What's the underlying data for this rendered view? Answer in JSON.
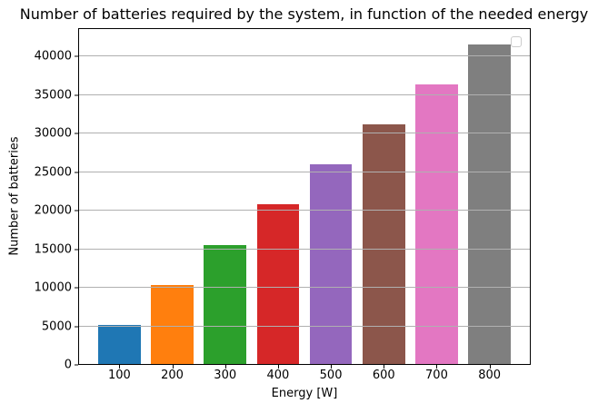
{
  "chart_data": {
    "type": "bar",
    "title": "Number of batteries required by the system, in function of the needed energy",
    "xlabel": "Energy [W]",
    "ylabel": "Number of batteries",
    "categories": [
      "100",
      "200",
      "300",
      "400",
      "500",
      "600",
      "700",
      "800"
    ],
    "x_numeric": [
      100,
      200,
      300,
      400,
      500,
      600,
      700,
      800
    ],
    "values": [
      5200,
      10400,
      15600,
      20800,
      26000,
      31200,
      36400,
      41600
    ],
    "bar_colors": [
      "#1f77b4",
      "#ff7f0e",
      "#2ca02c",
      "#d62728",
      "#9467bd",
      "#8c564b",
      "#e377c2",
      "#7f7f7f"
    ],
    "yticks": [
      0,
      5000,
      10000,
      15000,
      20000,
      25000,
      30000,
      35000,
      40000
    ],
    "ytick_labels": [
      "0",
      "5000",
      "10000",
      "15000",
      "20000",
      "25000",
      "30000",
      "35000",
      "40000"
    ],
    "ylim": [
      0,
      43700
    ],
    "xlim": [
      22,
      878
    ],
    "bar_width_units": 80,
    "grid": {
      "axis": "y",
      "color": "#b0b0b0",
      "drawn_over_bars": true
    },
    "legend": {
      "visible": true,
      "empty": true,
      "position": "upper right"
    },
    "background_color": "#ffffff",
    "spine_color": "#000000"
  }
}
